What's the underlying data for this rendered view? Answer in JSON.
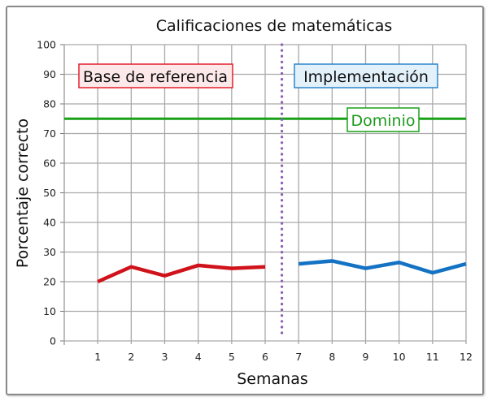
{
  "chart_data": {
    "type": "line",
    "title": "Calificaciones de matemáticas",
    "xlabel": "Semanas",
    "ylabel": "Porcentaje correcto",
    "x": [
      1,
      2,
      3,
      4,
      5,
      6,
      7,
      8,
      9,
      10,
      11,
      12
    ],
    "xticks": [
      "1",
      "2",
      "3",
      "4",
      "5",
      "6",
      "7",
      "8",
      "9",
      "10",
      "11",
      "12"
    ],
    "yticks": [
      "0",
      "10",
      "20",
      "30",
      "40",
      "50",
      "60",
      "70",
      "80",
      "90",
      "100"
    ],
    "ylim": [
      0,
      100
    ],
    "xlim": [
      0,
      12
    ],
    "grid": true,
    "series": [
      {
        "name": "Base de referencia",
        "color": "#d0121b",
        "x": [
          1,
          2,
          3,
          4,
          5,
          6
        ],
        "values": [
          20,
          25,
          22,
          25.5,
          24.5,
          25
        ]
      },
      {
        "name": "Implementación",
        "color": "#1472c4",
        "x": [
          7,
          8,
          9,
          10,
          11,
          12
        ],
        "values": [
          26,
          27,
          24.5,
          26.5,
          23,
          26
        ]
      }
    ],
    "reference_lines": [
      {
        "type": "horizontal",
        "name": "Dominio",
        "value": 75,
        "color": "#18a018"
      },
      {
        "type": "vertical",
        "name": "phase-change",
        "value": 6.5,
        "color": "#8a5fb4",
        "style": "dotted"
      }
    ],
    "annotations": [
      {
        "text": "Base de referencia",
        "border": "#e0202a",
        "fill": "#fde9ea"
      },
      {
        "text": "Implementación",
        "border": "#2a86cc",
        "fill": "#e3f1fb"
      },
      {
        "text": "Dominio",
        "border": "#18a018",
        "fill": "#ffffff"
      }
    ]
  },
  "labels": {
    "title": "Calificaciones de matemáticas",
    "xlabel": "Semanas",
    "ylabel": "Porcentaje correcto",
    "baseline": "Base de referencia",
    "implementation": "Implementación",
    "mastery": "Dominio"
  }
}
